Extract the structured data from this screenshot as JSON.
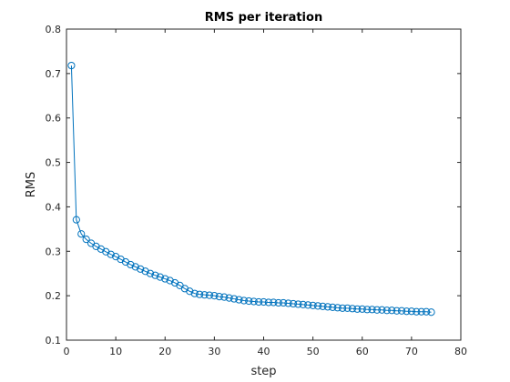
{
  "chart_data": {
    "type": "line",
    "title": "RMS per iteration",
    "xlabel": "step",
    "ylabel": "RMS",
    "xlim": [
      0,
      80
    ],
    "ylim": [
      0.1,
      0.8
    ],
    "xticks": [
      "0",
      "10",
      "20",
      "30",
      "40",
      "50",
      "60",
      "70",
      "80"
    ],
    "yticks": [
      "0.1",
      "0.2",
      "0.3",
      "0.4",
      "0.5",
      "0.6",
      "0.7",
      "0.8"
    ],
    "grid": false,
    "marker": "circle",
    "color": "#0072BD",
    "series": [
      {
        "x": [
          1,
          2,
          3,
          4,
          5,
          6,
          7,
          8,
          9,
          10,
          11,
          12,
          13,
          14,
          15,
          16,
          17,
          18,
          19,
          20,
          21,
          22,
          23,
          24,
          25,
          26,
          27,
          28,
          29,
          30,
          31,
          32,
          33,
          34,
          35,
          36,
          37,
          38,
          39,
          40,
          41,
          42,
          43,
          44,
          45,
          46,
          47,
          48,
          49,
          50,
          51,
          52,
          53,
          54,
          55,
          56,
          57,
          58,
          59,
          60,
          61,
          62,
          63,
          64,
          65,
          66,
          67,
          68,
          69,
          70,
          71,
          72,
          73,
          74
        ],
        "values": [
          0.718,
          0.371,
          0.339,
          0.327,
          0.318,
          0.311,
          0.305,
          0.299,
          0.293,
          0.288,
          0.282,
          0.276,
          0.27,
          0.265,
          0.26,
          0.255,
          0.25,
          0.246,
          0.242,
          0.238,
          0.234,
          0.229,
          0.223,
          0.216,
          0.21,
          0.205,
          0.203,
          0.202,
          0.201,
          0.2,
          0.198,
          0.197,
          0.195,
          0.193,
          0.191,
          0.189,
          0.188,
          0.187,
          0.186,
          0.186,
          0.185,
          0.185,
          0.184,
          0.184,
          0.183,
          0.182,
          0.181,
          0.18,
          0.179,
          0.178,
          0.177,
          0.176,
          0.175,
          0.174,
          0.173,
          0.172,
          0.172,
          0.171,
          0.17,
          0.17,
          0.169,
          0.169,
          0.168,
          0.168,
          0.167,
          0.167,
          0.166,
          0.166,
          0.165,
          0.165,
          0.164,
          0.164,
          0.164,
          0.163
        ]
      }
    ]
  }
}
